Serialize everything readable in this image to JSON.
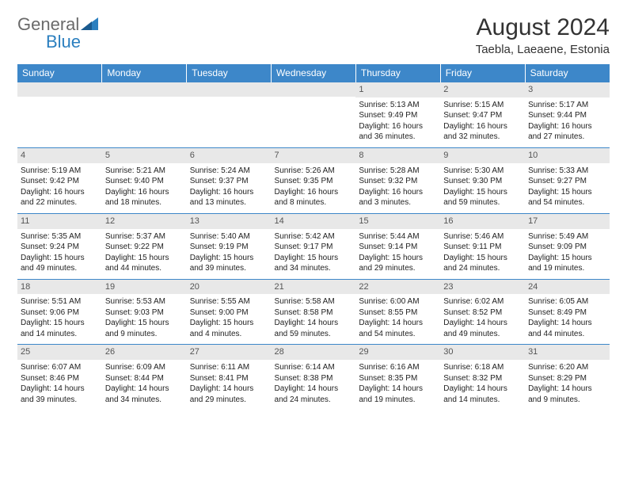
{
  "logo": {
    "general": "General",
    "blue": "Blue"
  },
  "title": "August 2024",
  "location": "Taebla, Laeaene, Estonia",
  "colors": {
    "header_bg": "#3d87c9",
    "header_text": "#ffffff",
    "date_bg": "#e8e8e8",
    "border": "#3d87c9",
    "logo_blue": "#2b7fbf",
    "logo_gray": "#6a6a6a"
  },
  "weekdays": [
    "Sunday",
    "Monday",
    "Tuesday",
    "Wednesday",
    "Thursday",
    "Friday",
    "Saturday"
  ],
  "weeks": [
    [
      null,
      null,
      null,
      null,
      {
        "date": "1",
        "sunrise": "Sunrise: 5:13 AM",
        "sunset": "Sunset: 9:49 PM",
        "daylight": "Daylight: 16 hours and 36 minutes."
      },
      {
        "date": "2",
        "sunrise": "Sunrise: 5:15 AM",
        "sunset": "Sunset: 9:47 PM",
        "daylight": "Daylight: 16 hours and 32 minutes."
      },
      {
        "date": "3",
        "sunrise": "Sunrise: 5:17 AM",
        "sunset": "Sunset: 9:44 PM",
        "daylight": "Daylight: 16 hours and 27 minutes."
      }
    ],
    [
      {
        "date": "4",
        "sunrise": "Sunrise: 5:19 AM",
        "sunset": "Sunset: 9:42 PM",
        "daylight": "Daylight: 16 hours and 22 minutes."
      },
      {
        "date": "5",
        "sunrise": "Sunrise: 5:21 AM",
        "sunset": "Sunset: 9:40 PM",
        "daylight": "Daylight: 16 hours and 18 minutes."
      },
      {
        "date": "6",
        "sunrise": "Sunrise: 5:24 AM",
        "sunset": "Sunset: 9:37 PM",
        "daylight": "Daylight: 16 hours and 13 minutes."
      },
      {
        "date": "7",
        "sunrise": "Sunrise: 5:26 AM",
        "sunset": "Sunset: 9:35 PM",
        "daylight": "Daylight: 16 hours and 8 minutes."
      },
      {
        "date": "8",
        "sunrise": "Sunrise: 5:28 AM",
        "sunset": "Sunset: 9:32 PM",
        "daylight": "Daylight: 16 hours and 3 minutes."
      },
      {
        "date": "9",
        "sunrise": "Sunrise: 5:30 AM",
        "sunset": "Sunset: 9:30 PM",
        "daylight": "Daylight: 15 hours and 59 minutes."
      },
      {
        "date": "10",
        "sunrise": "Sunrise: 5:33 AM",
        "sunset": "Sunset: 9:27 PM",
        "daylight": "Daylight: 15 hours and 54 minutes."
      }
    ],
    [
      {
        "date": "11",
        "sunrise": "Sunrise: 5:35 AM",
        "sunset": "Sunset: 9:24 PM",
        "daylight": "Daylight: 15 hours and 49 minutes."
      },
      {
        "date": "12",
        "sunrise": "Sunrise: 5:37 AM",
        "sunset": "Sunset: 9:22 PM",
        "daylight": "Daylight: 15 hours and 44 minutes."
      },
      {
        "date": "13",
        "sunrise": "Sunrise: 5:40 AM",
        "sunset": "Sunset: 9:19 PM",
        "daylight": "Daylight: 15 hours and 39 minutes."
      },
      {
        "date": "14",
        "sunrise": "Sunrise: 5:42 AM",
        "sunset": "Sunset: 9:17 PM",
        "daylight": "Daylight: 15 hours and 34 minutes."
      },
      {
        "date": "15",
        "sunrise": "Sunrise: 5:44 AM",
        "sunset": "Sunset: 9:14 PM",
        "daylight": "Daylight: 15 hours and 29 minutes."
      },
      {
        "date": "16",
        "sunrise": "Sunrise: 5:46 AM",
        "sunset": "Sunset: 9:11 PM",
        "daylight": "Daylight: 15 hours and 24 minutes."
      },
      {
        "date": "17",
        "sunrise": "Sunrise: 5:49 AM",
        "sunset": "Sunset: 9:09 PM",
        "daylight": "Daylight: 15 hours and 19 minutes."
      }
    ],
    [
      {
        "date": "18",
        "sunrise": "Sunrise: 5:51 AM",
        "sunset": "Sunset: 9:06 PM",
        "daylight": "Daylight: 15 hours and 14 minutes."
      },
      {
        "date": "19",
        "sunrise": "Sunrise: 5:53 AM",
        "sunset": "Sunset: 9:03 PM",
        "daylight": "Daylight: 15 hours and 9 minutes."
      },
      {
        "date": "20",
        "sunrise": "Sunrise: 5:55 AM",
        "sunset": "Sunset: 9:00 PM",
        "daylight": "Daylight: 15 hours and 4 minutes."
      },
      {
        "date": "21",
        "sunrise": "Sunrise: 5:58 AM",
        "sunset": "Sunset: 8:58 PM",
        "daylight": "Daylight: 14 hours and 59 minutes."
      },
      {
        "date": "22",
        "sunrise": "Sunrise: 6:00 AM",
        "sunset": "Sunset: 8:55 PM",
        "daylight": "Daylight: 14 hours and 54 minutes."
      },
      {
        "date": "23",
        "sunrise": "Sunrise: 6:02 AM",
        "sunset": "Sunset: 8:52 PM",
        "daylight": "Daylight: 14 hours and 49 minutes."
      },
      {
        "date": "24",
        "sunrise": "Sunrise: 6:05 AM",
        "sunset": "Sunset: 8:49 PM",
        "daylight": "Daylight: 14 hours and 44 minutes."
      }
    ],
    [
      {
        "date": "25",
        "sunrise": "Sunrise: 6:07 AM",
        "sunset": "Sunset: 8:46 PM",
        "daylight": "Daylight: 14 hours and 39 minutes."
      },
      {
        "date": "26",
        "sunrise": "Sunrise: 6:09 AM",
        "sunset": "Sunset: 8:44 PM",
        "daylight": "Daylight: 14 hours and 34 minutes."
      },
      {
        "date": "27",
        "sunrise": "Sunrise: 6:11 AM",
        "sunset": "Sunset: 8:41 PM",
        "daylight": "Daylight: 14 hours and 29 minutes."
      },
      {
        "date": "28",
        "sunrise": "Sunrise: 6:14 AM",
        "sunset": "Sunset: 8:38 PM",
        "daylight": "Daylight: 14 hours and 24 minutes."
      },
      {
        "date": "29",
        "sunrise": "Sunrise: 6:16 AM",
        "sunset": "Sunset: 8:35 PM",
        "daylight": "Daylight: 14 hours and 19 minutes."
      },
      {
        "date": "30",
        "sunrise": "Sunrise: 6:18 AM",
        "sunset": "Sunset: 8:32 PM",
        "daylight": "Daylight: 14 hours and 14 minutes."
      },
      {
        "date": "31",
        "sunrise": "Sunrise: 6:20 AM",
        "sunset": "Sunset: 8:29 PM",
        "daylight": "Daylight: 14 hours and 9 minutes."
      }
    ]
  ]
}
